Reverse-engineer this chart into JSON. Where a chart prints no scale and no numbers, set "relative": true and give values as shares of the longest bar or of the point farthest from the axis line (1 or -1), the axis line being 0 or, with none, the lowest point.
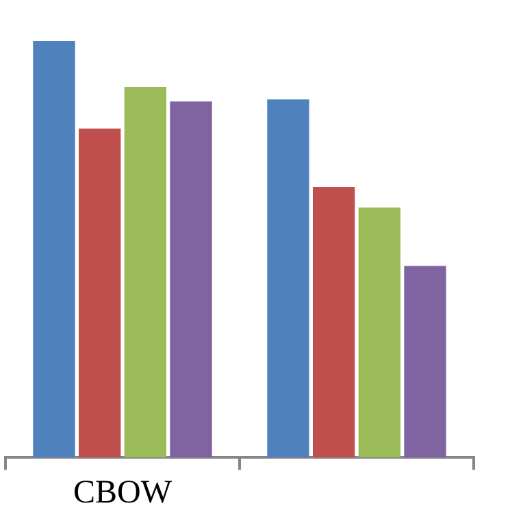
{
  "chart_data": {
    "type": "bar",
    "relative": true,
    "categories": [
      "CBOW",
      null
    ],
    "series": [
      {
        "color": "#4f81bd",
        "values": [
          1,
          0.86
        ]
      },
      {
        "color": "#c0504d",
        "values": [
          0.79,
          0.65
        ]
      },
      {
        "color": "#9bbb59",
        "values": [
          0.89,
          0.6
        ]
      },
      {
        "color": "#8064a2",
        "values": [
          0.855,
          0.46
        ]
      }
    ],
    "legend": false,
    "grid": false
  }
}
